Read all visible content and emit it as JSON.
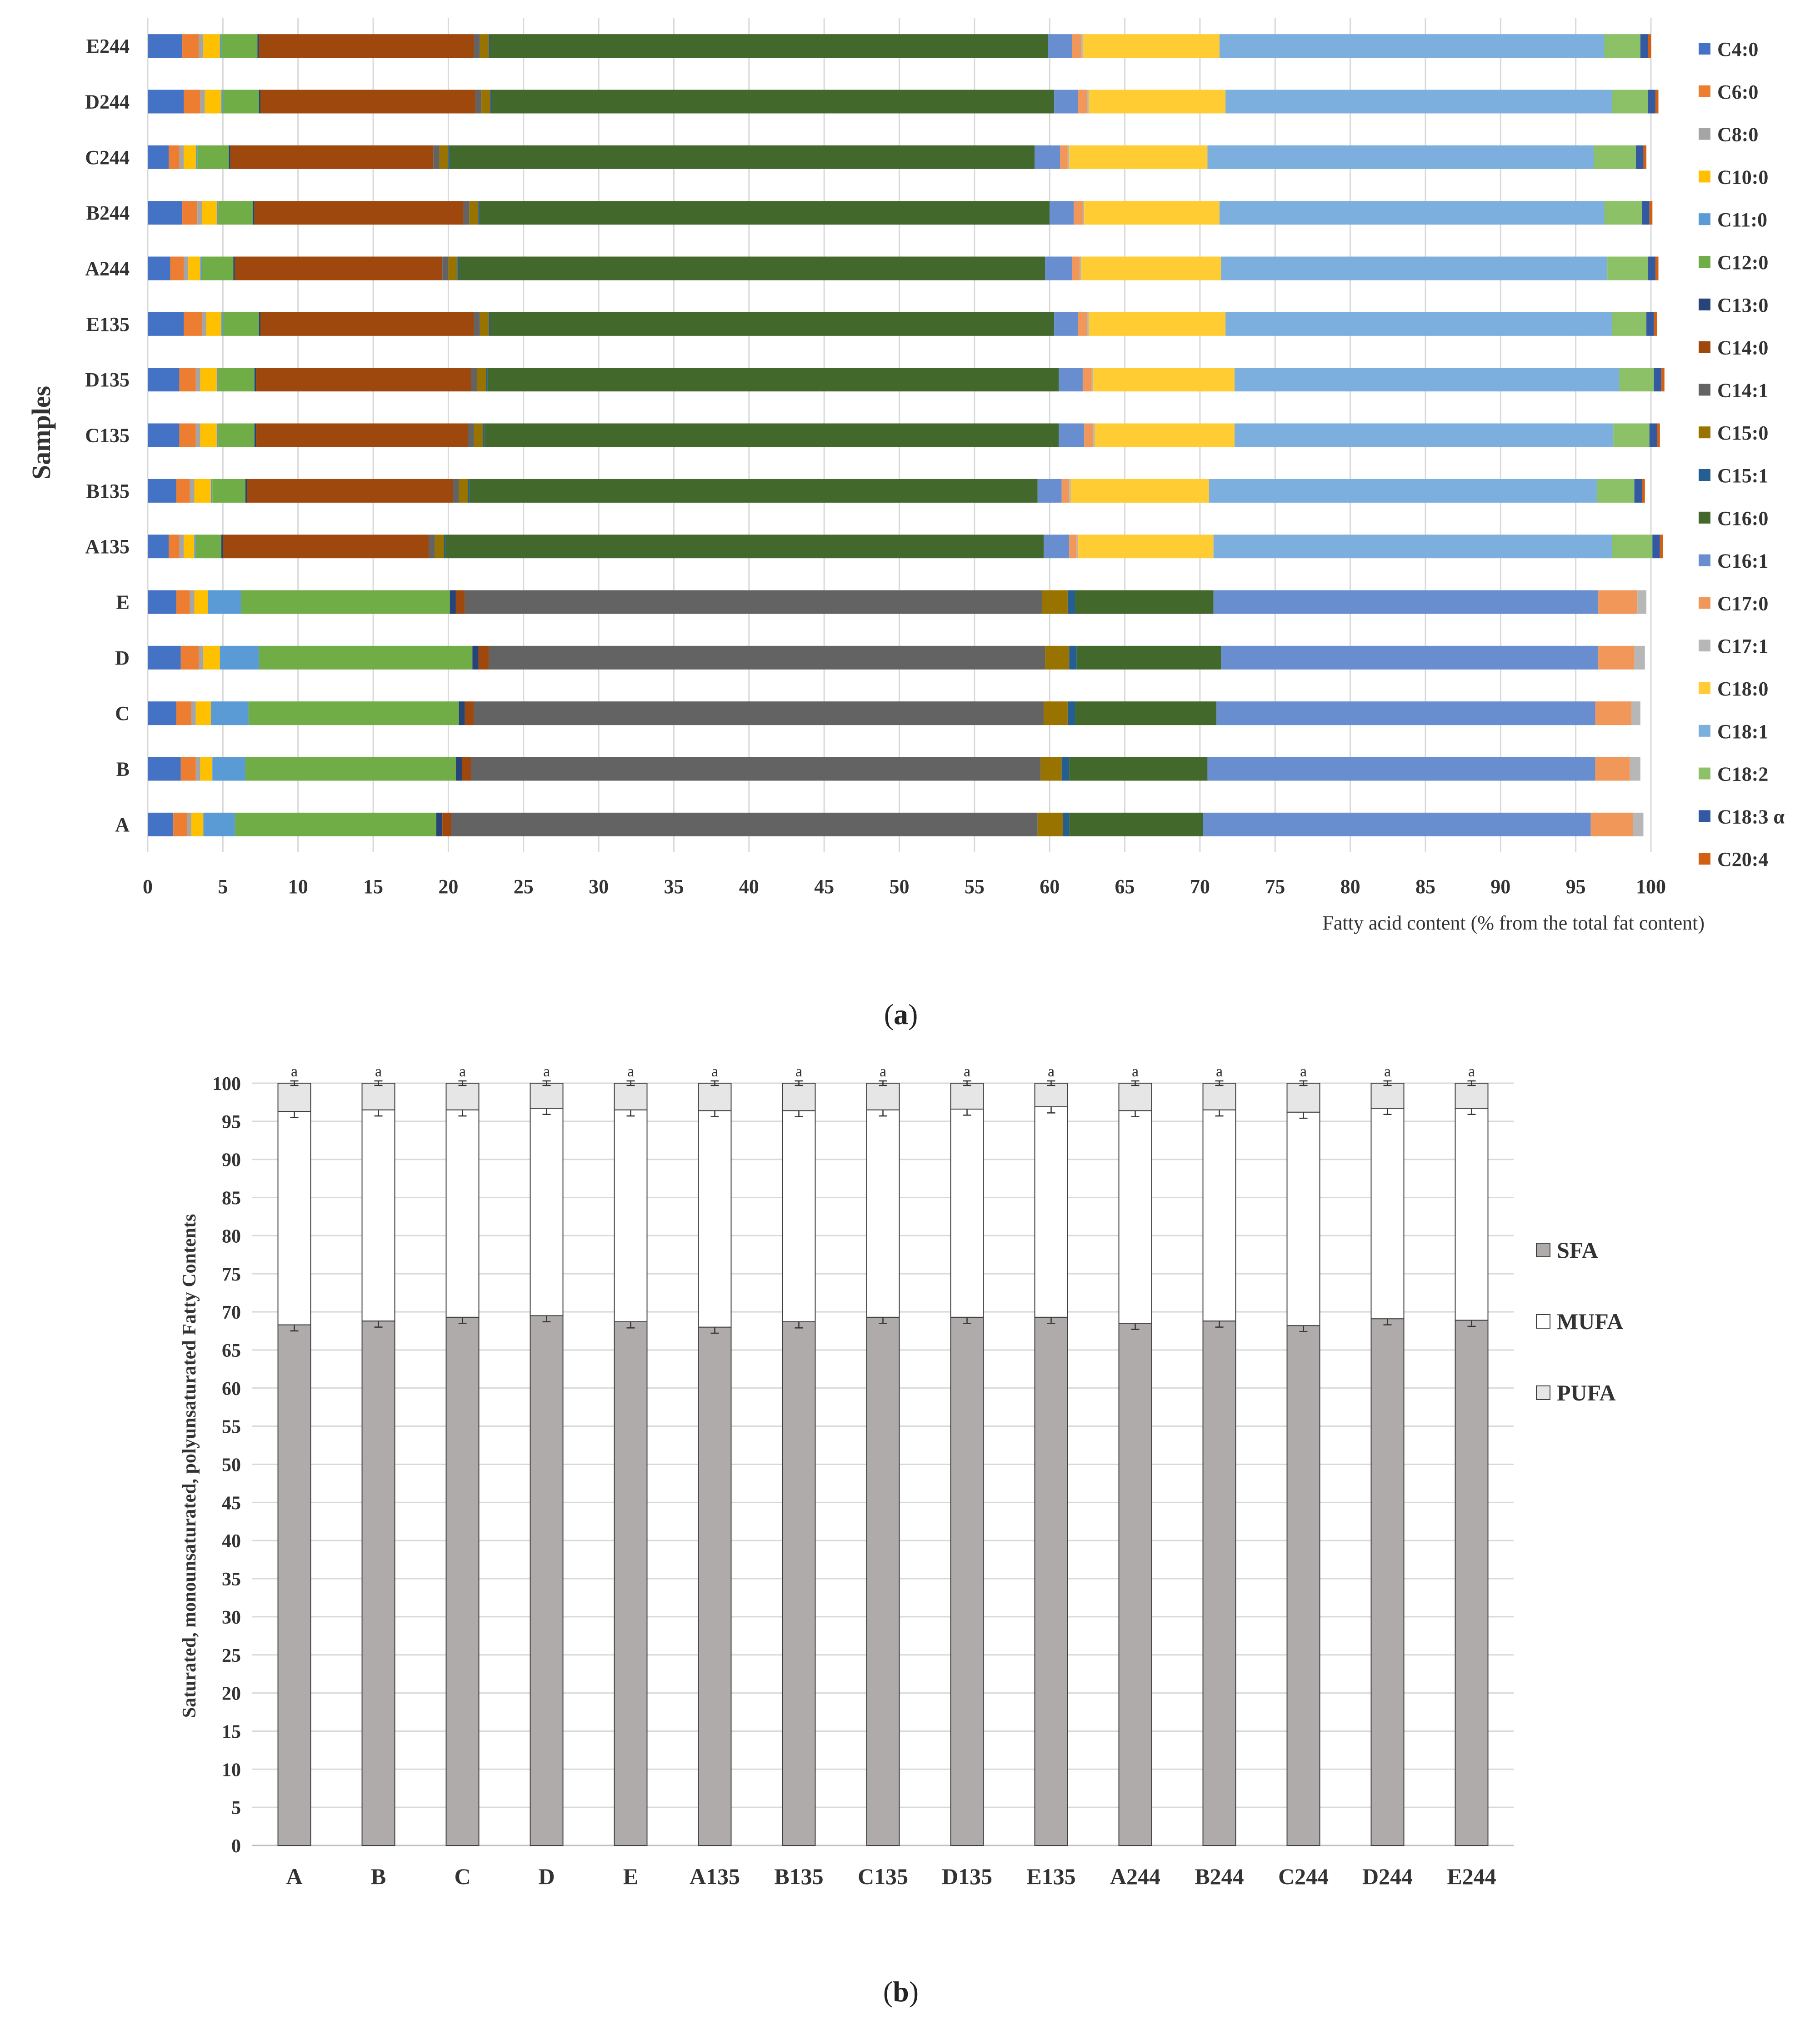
{
  "figure": {
    "panels": [
      {
        "caption_letter": "a",
        "chart_data": {
          "type": "bar",
          "orientation": "horizontal",
          "stacked": true,
          "title": "",
          "ylabel": "Samples",
          "xlabel": "Fatty acid content (% from the total fat content)",
          "xlim": [
            0,
            100
          ],
          "xticks": [
            0,
            5,
            10,
            15,
            20,
            25,
            30,
            35,
            40,
            45,
            50,
            55,
            60,
            65,
            70,
            75,
            80,
            85,
            90,
            95,
            100
          ],
          "grid": true,
          "legend_position": "right",
          "categories": [
            "A",
            "B",
            "C",
            "D",
            "E",
            "A135",
            "B135",
            "C135",
            "D135",
            "E135",
            "A244",
            "B244",
            "C244",
            "D244",
            "E244"
          ],
          "series": [
            {
              "name": "C4:0",
              "color": "#4472C4",
              "values": [
                1.7,
                2.2,
                1.9,
                2.2,
                1.9,
                1.4,
                1.9,
                2.1,
                2.1,
                2.4,
                1.5,
                2.3,
                1.4,
                2.4,
                2.3
              ]
            },
            {
              "name": "C6:0",
              "color": "#ED7D31",
              "values": [
                0.9,
                1.0,
                1.0,
                1.2,
                0.9,
                0.7,
                0.9,
                1.1,
                1.1,
                1.2,
                0.9,
                1.0,
                0.7,
                1.1,
                1.1
              ]
            },
            {
              "name": "C8:0",
              "color": "#A5A5A5",
              "values": [
                0.3,
                0.3,
                0.3,
                0.3,
                0.3,
                0.3,
                0.3,
                0.3,
                0.3,
                0.3,
                0.3,
                0.3,
                0.3,
                0.3,
                0.3
              ]
            },
            {
              "name": "C10:0",
              "color": "#FFC000",
              "values": [
                0.8,
                0.8,
                1.0,
                1.1,
                0.9,
                0.7,
                1.1,
                1.1,
                1.1,
                1.0,
                0.8,
                1.0,
                0.8,
                1.1,
                1.1
              ]
            },
            {
              "name": "C11:0",
              "color": "#5B9BD5",
              "values": [
                2.1,
                2.2,
                2.5,
                2.6,
                2.2,
                0.1,
                0.1,
                0.1,
                0.1,
                0.1,
                0.1,
                0.1,
                0.1,
                0.1,
                0.1
              ]
            },
            {
              "name": "C12:0",
              "color": "#70AD47",
              "values": [
                13.4,
                14.0,
                14.0,
                14.2,
                13.9,
                1.7,
                2.2,
                2.4,
                2.4,
                2.4,
                2.1,
                2.3,
                2.1,
                2.4,
                2.4
              ]
            },
            {
              "name": "C13:0",
              "color": "#264478",
              "values": [
                0.4,
                0.4,
                0.4,
                0.4,
                0.4,
                0.1,
                0.1,
                0.1,
                0.1,
                0.1,
                0.1,
                0.1,
                0.1,
                0.1,
                0.1
              ]
            },
            {
              "name": "C14:0",
              "color": "#9E480E",
              "values": [
                0.6,
                0.6,
                0.6,
                0.7,
                0.6,
                13.7,
                13.7,
                14.1,
                14.3,
                14.2,
                13.8,
                13.9,
                13.5,
                14.3,
                14.3
              ]
            },
            {
              "name": "C14:1",
              "color": "#636363",
              "values": [
                39.0,
                37.9,
                37.9,
                37.0,
                38.4,
                0.4,
                0.4,
                0.4,
                0.4,
                0.4,
                0.4,
                0.4,
                0.4,
                0.4,
                0.4
              ]
            },
            {
              "name": "C15:0",
              "color": "#997300",
              "values": [
                1.7,
                1.4,
                1.6,
                1.6,
                1.7,
                0.6,
                0.6,
                0.6,
                0.6,
                0.6,
                0.6,
                0.6,
                0.6,
                0.6,
                0.6
              ]
            },
            {
              "name": "C15:1",
              "color": "#255E91",
              "values": [
                0.4,
                0.5,
                0.5,
                0.5,
                0.5,
                0.1,
                0.1,
                0.1,
                0.1,
                0.1,
                0.1,
                0.1,
                0.1,
                0.1,
                0.1
              ]
            },
            {
              "name": "C16:0",
              "color": "#43682B",
              "values": [
                8.9,
                9.2,
                9.4,
                9.6,
                9.2,
                39.8,
                37.8,
                38.2,
                38.0,
                37.5,
                39.0,
                37.9,
                38.9,
                37.4,
                37.1
              ]
            },
            {
              "name": "C16:1",
              "color": "#698ED0",
              "values": [
                25.8,
                25.8,
                25.2,
                25.1,
                25.6,
                1.7,
                1.6,
                1.7,
                1.6,
                1.6,
                1.8,
                1.6,
                1.7,
                1.6,
                1.6
              ]
            },
            {
              "name": "C17:0",
              "color": "#F1975A",
              "values": [
                2.8,
                2.3,
                2.4,
                2.4,
                2.6,
                0.5,
                0.5,
                0.6,
                0.6,
                0.6,
                0.5,
                0.6,
                0.5,
                0.6,
                0.6
              ]
            },
            {
              "name": "C17:1",
              "color": "#B7B7B7",
              "values": [
                0.7,
                0.7,
                0.6,
                0.7,
                0.6,
                0.1,
                0.1,
                0.1,
                0.1,
                0.1,
                0.1,
                0.1,
                0.1,
                0.1,
                0.1
              ]
            },
            {
              "name": "C18:0",
              "color": "#FFCD33",
              "values": [
                0,
                0,
                0,
                0,
                0,
                9.0,
                9.2,
                9.3,
                9.4,
                9.1,
                9.3,
                9.0,
                9.2,
                9.1,
                9.1
              ]
            },
            {
              "name": "C18:1",
              "color": "#7CAFDD",
              "values": [
                0,
                0,
                0,
                0,
                0,
                26.5,
                25.8,
                25.2,
                25.6,
                25.7,
                25.7,
                25.6,
                25.7,
                25.7,
                25.6
              ]
            },
            {
              "name": "C18:2",
              "color": "#8CC168",
              "values": [
                0,
                0,
                0,
                0,
                0,
                2.7,
                2.5,
                2.4,
                2.3,
                2.3,
                2.7,
                2.5,
                2.8,
                2.4,
                2.4
              ]
            },
            {
              "name": "C18:3 α",
              "color": "#335AA1",
              "values": [
                0,
                0,
                0,
                0,
                0,
                0.5,
                0.5,
                0.5,
                0.5,
                0.5,
                0.5,
                0.5,
                0.5,
                0.5,
                0.5
              ]
            },
            {
              "name": "C20:4",
              "color": "#D26012",
              "values": [
                0,
                0,
                0,
                0,
                0,
                0.2,
                0.2,
                0.2,
                0.2,
                0.2,
                0.2,
                0.2,
                0.2,
                0.2,
                0.2
              ]
            }
          ]
        }
      },
      {
        "caption_letter": "b",
        "chart_data": {
          "type": "bar",
          "orientation": "vertical",
          "stacked": true,
          "title": "",
          "xlabel": "",
          "ylabel": "Saturated, monounsaturated, polyunsaturated  Fatty Contents",
          "ylim": [
            0,
            100
          ],
          "yticks": [
            0,
            5,
            10,
            15,
            20,
            25,
            30,
            35,
            40,
            45,
            50,
            55,
            60,
            65,
            70,
            75,
            80,
            85,
            90,
            95,
            100
          ],
          "grid": true,
          "legend_position": "right",
          "categories": [
            "A",
            "B",
            "C",
            "D",
            "E",
            "A135",
            "B135",
            "C135",
            "D135",
            "E135",
            "A244",
            "B244",
            "C244",
            "D244",
            "E244"
          ],
          "series": [
            {
              "name": "SFA",
              "color": "#AFABAB",
              "values": [
                68.3,
                68.8,
                69.3,
                69.5,
                68.7,
                68.0,
                68.7,
                69.3,
                69.3,
                69.3,
                68.5,
                68.8,
                68.2,
                69.1,
                68.9
              ]
            },
            {
              "name": "MUFA",
              "color": "#FFFFFF",
              "values": [
                28.0,
                27.7,
                27.2,
                27.2,
                27.8,
                28.4,
                27.7,
                27.2,
                27.3,
                27.6,
                27.9,
                27.7,
                28.0,
                27.6,
                27.8
              ]
            },
            {
              "name": "PUFA",
              "color": "#E7E6E6",
              "values": [
                3.7,
                3.5,
                3.5,
                3.3,
                3.5,
                3.6,
                3.6,
                3.5,
                3.4,
                3.1,
                3.6,
                3.5,
                3.8,
                3.3,
                3.3
              ]
            }
          ],
          "error_bars": {
            "SFA": 0.8,
            "MUFA": 0.8,
            "PUFA": 0.3
          },
          "significance_letter": "a"
        }
      }
    ]
  }
}
